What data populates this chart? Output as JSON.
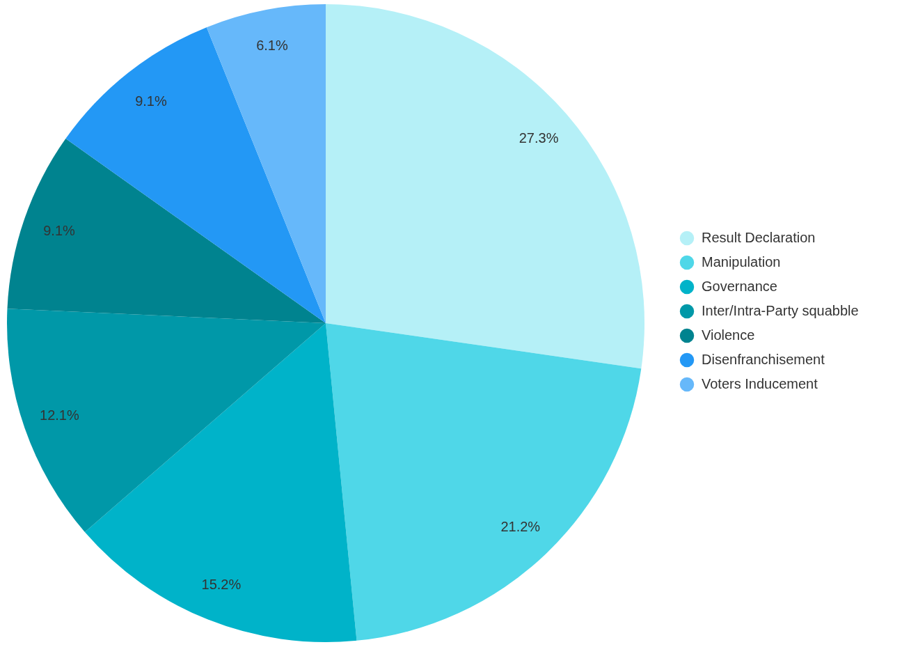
{
  "chart_data": {
    "type": "pie",
    "categories": [
      "Result Declaration",
      "Manipulation",
      "Governance",
      "Inter/Intra-Party squabble",
      "Violence",
      "Disenfranchisement",
      "Voters Inducement"
    ],
    "values": [
      27.3,
      21.2,
      15.2,
      12.1,
      9.1,
      9.1,
      6.1
    ],
    "value_labels": [
      "27.3%",
      "21.2%",
      "15.2%",
      "12.1%",
      "9.1%",
      "9.1%",
      "6.1%"
    ],
    "colors": [
      "#b5f0f7",
      "#4fd7e8",
      "#00b3c9",
      "#0098a8",
      "#00838f",
      "#2398f5",
      "#66b8fa"
    ],
    "legend": "right"
  }
}
